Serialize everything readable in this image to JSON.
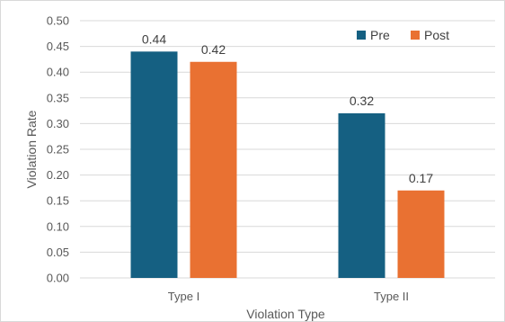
{
  "chart_data": {
    "type": "bar",
    "categories": [
      "Type I",
      "Type II"
    ],
    "series": [
      {
        "name": "Pre",
        "values": [
          0.44,
          0.32
        ],
        "color": "#156082"
      },
      {
        "name": "Post",
        "values": [
          0.42,
          0.17
        ],
        "color": "#E97132"
      }
    ],
    "data_labels": [
      [
        "0.44",
        "0.32"
      ],
      [
        "0.42",
        "0.17"
      ]
    ],
    "title": "",
    "xlabel": "Violation Type",
    "ylabel": "Violation Rate",
    "ylim": [
      0,
      0.5
    ],
    "y_ticks": [
      "0.00",
      "0.05",
      "0.10",
      "0.15",
      "0.20",
      "0.25",
      "0.30",
      "0.35",
      "0.40",
      "0.45",
      "0.50"
    ],
    "grid": true,
    "legend_position": "top-right",
    "gridline_color": "#d9d9d9"
  }
}
